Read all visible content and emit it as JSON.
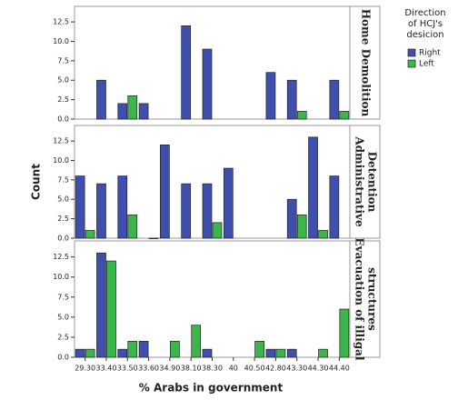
{
  "chart_data": {
    "type": "bar",
    "y_label": "Count",
    "x_label": "% Arabs in government",
    "legend_title": [
      "Direction",
      "of HCJ's",
      "desicion"
    ],
    "categories": [
      "29.30",
      "33.40",
      "33.50",
      "33.60",
      "34.90",
      "38.10",
      "38.30",
      "40",
      "40.50",
      "42.80",
      "43.30",
      "44.30",
      "44.40"
    ],
    "panels": [
      [
        "Home Demolition"
      ],
      [
        "Administrative",
        "Detention"
      ],
      [
        "Evacuation of illigal",
        "structures"
      ]
    ],
    "series": [
      {
        "name": "Right",
        "color": "#3f4fae",
        "values": [
          [
            null,
            5,
            2,
            2,
            null,
            12,
            9,
            null,
            null,
            6,
            5,
            null,
            5
          ],
          [
            8,
            7,
            8,
            null,
            12,
            7,
            7,
            9,
            null,
            null,
            5,
            13,
            8
          ],
          [
            1,
            13,
            1,
            2,
            null,
            null,
            1,
            null,
            null,
            1,
            1,
            null,
            null
          ]
        ]
      },
      {
        "name": "Left",
        "color": "#3cb54a",
        "values": [
          [
            null,
            null,
            3,
            null,
            null,
            null,
            null,
            null,
            null,
            null,
            1,
            null,
            1
          ],
          [
            1,
            null,
            3,
            0,
            null,
            null,
            2,
            null,
            null,
            null,
            3,
            1,
            null
          ],
          [
            1,
            12,
            2,
            null,
            2,
            4,
            null,
            null,
            2,
            1,
            null,
            1,
            6
          ]
        ]
      }
    ],
    "ylim": [
      0,
      14.5
    ],
    "yticks": [
      {
        "value": 0,
        "label": "0.0"
      },
      2.5,
      {
        "value": 5,
        "label": "5.0"
      },
      7.5,
      {
        "value": 10,
        "label": "10.0"
      },
      12.5
    ]
  }
}
